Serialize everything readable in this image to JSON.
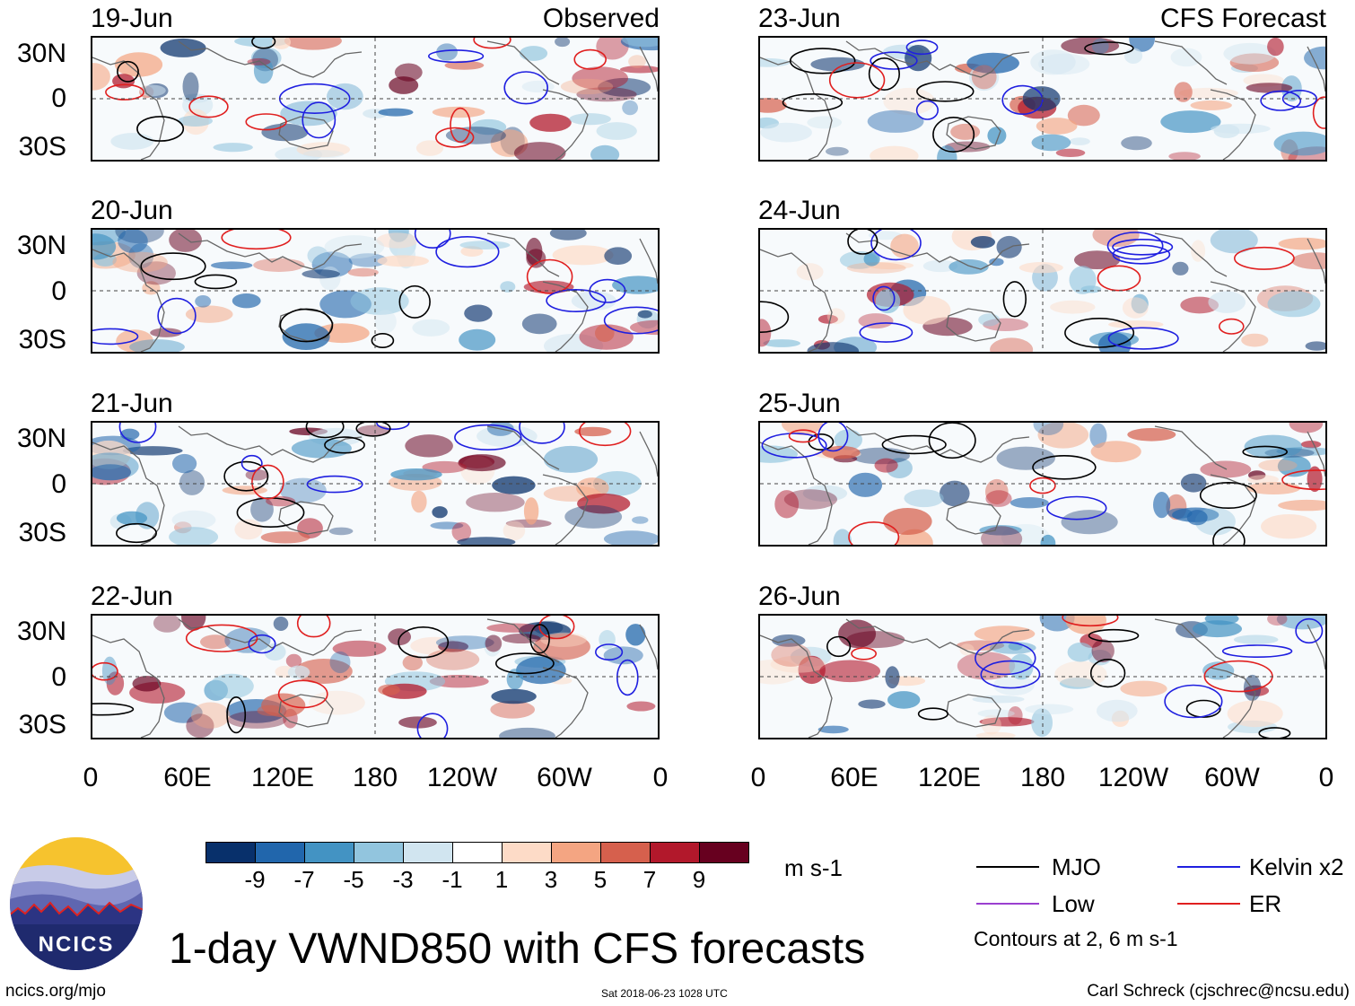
{
  "left_column": {
    "title": "Observed",
    "dates": [
      "19-Jun",
      "20-Jun",
      "21-Jun",
      "22-Jun"
    ]
  },
  "right_column": {
    "title": "CFS Forecast",
    "dates": [
      "23-Jun",
      "24-Jun",
      "25-Jun",
      "26-Jun"
    ]
  },
  "lat_labels": [
    "30N",
    "0",
    "30S"
  ],
  "lon_labels": [
    "0",
    "60E",
    "120E",
    "180",
    "120W",
    "60W",
    "0"
  ],
  "colorbar": {
    "colors": [
      "#08306b",
      "#2166ac",
      "#4393c3",
      "#92c5de",
      "#d1e5f0",
      "#ffffff",
      "#fddbc7",
      "#f4a582",
      "#d6604d",
      "#b2182b",
      "#67001f"
    ],
    "labels": [
      "-9",
      "-7",
      "-5",
      "-3",
      "-1",
      "1",
      "3",
      "5",
      "7",
      "9"
    ],
    "units": "m s-1"
  },
  "legend": {
    "items": [
      {
        "label": "MJO",
        "color": "#000000"
      },
      {
        "label": "Kelvin x2",
        "color": "#1f1fe0"
      },
      {
        "label": "Low",
        "color": "#9a3fd0"
      },
      {
        "label": "ER",
        "color": "#e01f1f"
      }
    ],
    "contours_note": "Contours at 2, 6 m s-1"
  },
  "logo_text": "NCICS",
  "main_title": "1-day VWND850 with CFS forecasts",
  "footer": {
    "left": "ncics.org/mjo",
    "center": "Sat 2018-06-23 1028 UTC",
    "right": "Carl Schreck (cjschrec@ncsu.edu)"
  }
}
